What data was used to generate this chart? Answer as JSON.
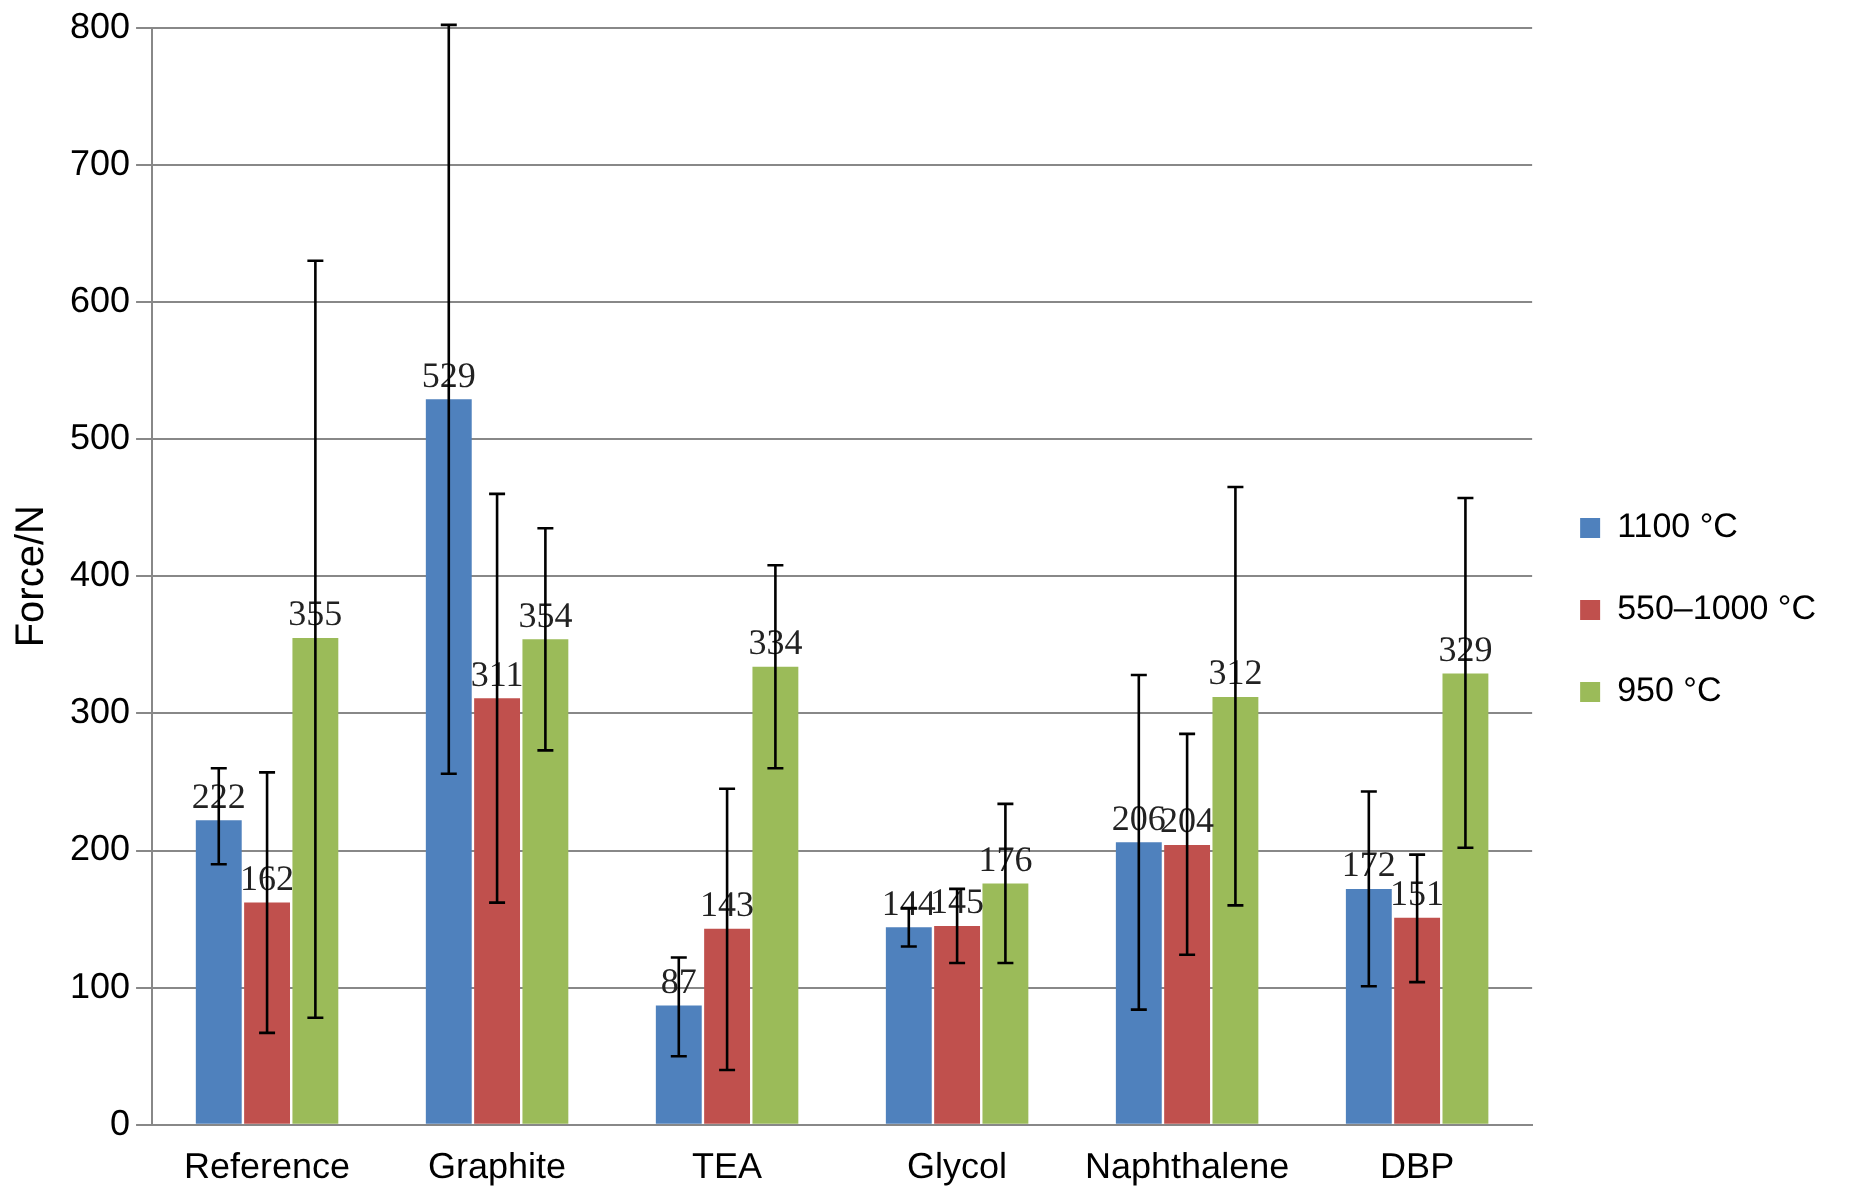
{
  "chart_data": {
    "type": "bar",
    "ylabel": "Force/N",
    "categories": [
      "Reference",
      "Graphite",
      "TEA",
      "Glycol",
      "Naphthalene",
      "DBP"
    ],
    "series": [
      {
        "name": "1100 °C",
        "color": "#4f81bd",
        "values": [
          222,
          529,
          87,
          144,
          206,
          172
        ],
        "errors": [
          [
            190,
            260
          ],
          [
            256,
            802
          ],
          [
            50,
            122
          ],
          [
            130,
            158
          ],
          [
            84,
            328
          ],
          [
            101,
            243
          ]
        ]
      },
      {
        "name": "550–1000 °C",
        "color": "#c0504d",
        "values": [
          162,
          311,
          143,
          145,
          204,
          151
        ],
        "errors": [
          [
            67,
            257
          ],
          [
            162,
            460
          ],
          [
            40,
            245
          ],
          [
            118,
            172
          ],
          [
            124,
            285
          ],
          [
            104,
            197
          ]
        ]
      },
      {
        "name": "950 °C",
        "color": "#9bbb59",
        "values": [
          355,
          354,
          334,
          176,
          312,
          329
        ],
        "errors": [
          [
            78,
            630
          ],
          [
            273,
            435
          ],
          [
            260,
            408
          ],
          [
            118,
            234
          ],
          [
            160,
            465
          ],
          [
            202,
            457
          ]
        ]
      }
    ],
    "ylim": [
      0,
      800
    ],
    "yticks": [
      0,
      100,
      200,
      300,
      400,
      500,
      600,
      700,
      800
    ],
    "grid": "y",
    "legend": "right",
    "data_labels": true
  }
}
